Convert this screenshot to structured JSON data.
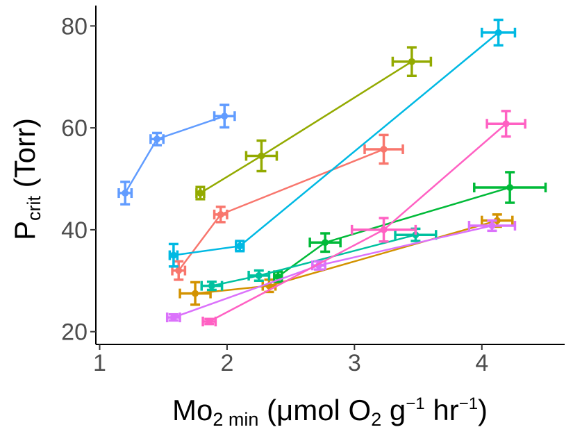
{
  "chart_data": {
    "type": "line",
    "title": "",
    "xlabel": {
      "main": "Mo",
      "sub": "2 min",
      "rest_open": " (",
      "mu": "μ",
      "rest": "mol O",
      "o_sub": "2",
      "g": " g",
      "g_sup": "−1",
      "hr": " hr",
      "hr_sup": "−1",
      "close": ")"
    },
    "ylabel": {
      "main": "P",
      "sub": "crit",
      "rest": " (Torr)"
    },
    "xlim": [
      0.97,
      4.65
    ],
    "ylim": [
      17.5,
      84
    ],
    "xticks": [
      1,
      2,
      3,
      4
    ],
    "yticks": [
      20,
      40,
      60,
      80
    ],
    "grid": false,
    "legend": "none",
    "series": [
      {
        "color": "#F8766D",
        "points": [
          {
            "x": 1.62,
            "y": 32.0,
            "xerr": 0.05,
            "yerr": 1.8
          },
          {
            "x": 1.95,
            "y": 43.0,
            "xerr": 0.05,
            "yerr": 1.5
          },
          {
            "x": 3.23,
            "y": 55.8,
            "xerr": 0.15,
            "yerr": 2.8
          }
        ]
      },
      {
        "color": "#D39200",
        "points": [
          {
            "x": 1.75,
            "y": 27.5,
            "xerr": 0.12,
            "yerr": 2.2
          },
          {
            "x": 2.33,
            "y": 29.0,
            "xerr": 0.05,
            "yerr": 1.2
          },
          {
            "x": 4.12,
            "y": 41.8,
            "xerr": 0.12,
            "yerr": 1.2
          }
        ]
      },
      {
        "color": "#93AA00",
        "points": [
          {
            "x": 1.79,
            "y": 47.2,
            "xerr": 0.03,
            "yerr": 1.2
          },
          {
            "x": 2.27,
            "y": 54.5,
            "xerr": 0.12,
            "yerr": 3.0
          },
          {
            "x": 3.45,
            "y": 73.0,
            "xerr": 0.15,
            "yerr": 2.8
          }
        ]
      },
      {
        "color": "#00BA38",
        "points": [
          {
            "x": 2.4,
            "y": 30.8,
            "xerr": 0.03,
            "yerr": 1.0
          },
          {
            "x": 2.77,
            "y": 37.5,
            "xerr": 0.12,
            "yerr": 1.8
          },
          {
            "x": 4.22,
            "y": 48.3,
            "xerr": 0.28,
            "yerr": 3.0
          }
        ]
      },
      {
        "color": "#00C19F",
        "points": [
          {
            "x": 1.88,
            "y": 29.0,
            "xerr": 0.08,
            "yerr": 0.8
          },
          {
            "x": 2.25,
            "y": 31.0,
            "xerr": 0.08,
            "yerr": 1.0
          },
          {
            "x": 3.48,
            "y": 39.0,
            "xerr": 0.16,
            "yerr": 1.2
          }
        ]
      },
      {
        "color": "#00B9E3",
        "points": [
          {
            "x": 1.58,
            "y": 35.0,
            "xerr": 0.03,
            "yerr": 2.2
          },
          {
            "x": 2.1,
            "y": 36.8,
            "xerr": 0.03,
            "yerr": 1.0
          },
          {
            "x": 4.13,
            "y": 78.7,
            "xerr": 0.13,
            "yerr": 2.5
          }
        ]
      },
      {
        "color": "#619CFF",
        "points": [
          {
            "x": 1.2,
            "y": 47.2,
            "xerr": 0.05,
            "yerr": 2.2
          },
          {
            "x": 1.45,
            "y": 57.8,
            "xerr": 0.05,
            "yerr": 1.2
          },
          {
            "x": 1.98,
            "y": 62.3,
            "xerr": 0.08,
            "yerr": 2.2
          }
        ]
      },
      {
        "color": "#DB72FB",
        "points": [
          {
            "x": 1.58,
            "y": 22.8,
            "xerr": 0.05,
            "yerr": 0.6
          },
          {
            "x": 2.72,
            "y": 33.0,
            "xerr": 0.05,
            "yerr": 0.8
          },
          {
            "x": 4.08,
            "y": 40.8,
            "xerr": 0.18,
            "yerr": 1.0
          }
        ]
      },
      {
        "color": "#FF61C3",
        "points": [
          {
            "x": 1.86,
            "y": 22.0,
            "xerr": 0.05,
            "yerr": 0.5
          },
          {
            "x": 3.23,
            "y": 40.0,
            "xerr": 0.25,
            "yerr": 2.3
          },
          {
            "x": 4.19,
            "y": 60.8,
            "xerr": 0.15,
            "yerr": 2.5
          }
        ]
      }
    ]
  }
}
